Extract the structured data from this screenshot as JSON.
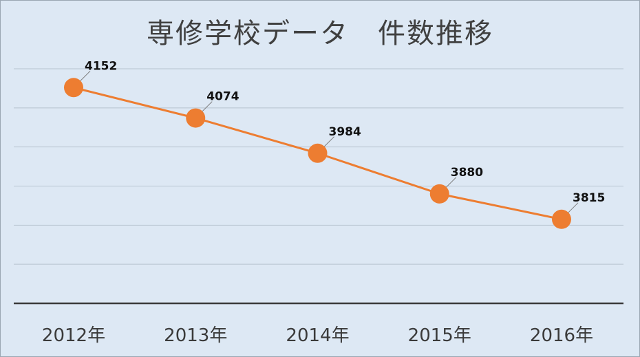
{
  "chart_data": {
    "type": "line",
    "title": "専修学校データ　件数推移",
    "categories": [
      "2012年",
      "2013年",
      "2014年",
      "2015年",
      "2016年"
    ],
    "series": [
      {
        "values": [
          4152,
          4074,
          3984,
          3880,
          3815
        ]
      }
    ],
    "data_labels": [
      "4152",
      "4074",
      "3984",
      "3880",
      "3815"
    ],
    "ylim": [
      3600,
      4200
    ],
    "grid": true,
    "legend": "none",
    "colors": {
      "line": "#ed7d31",
      "grid": "#b7c3cf",
      "axis": "#3a3a3a",
      "background": "#dde8f4"
    }
  }
}
